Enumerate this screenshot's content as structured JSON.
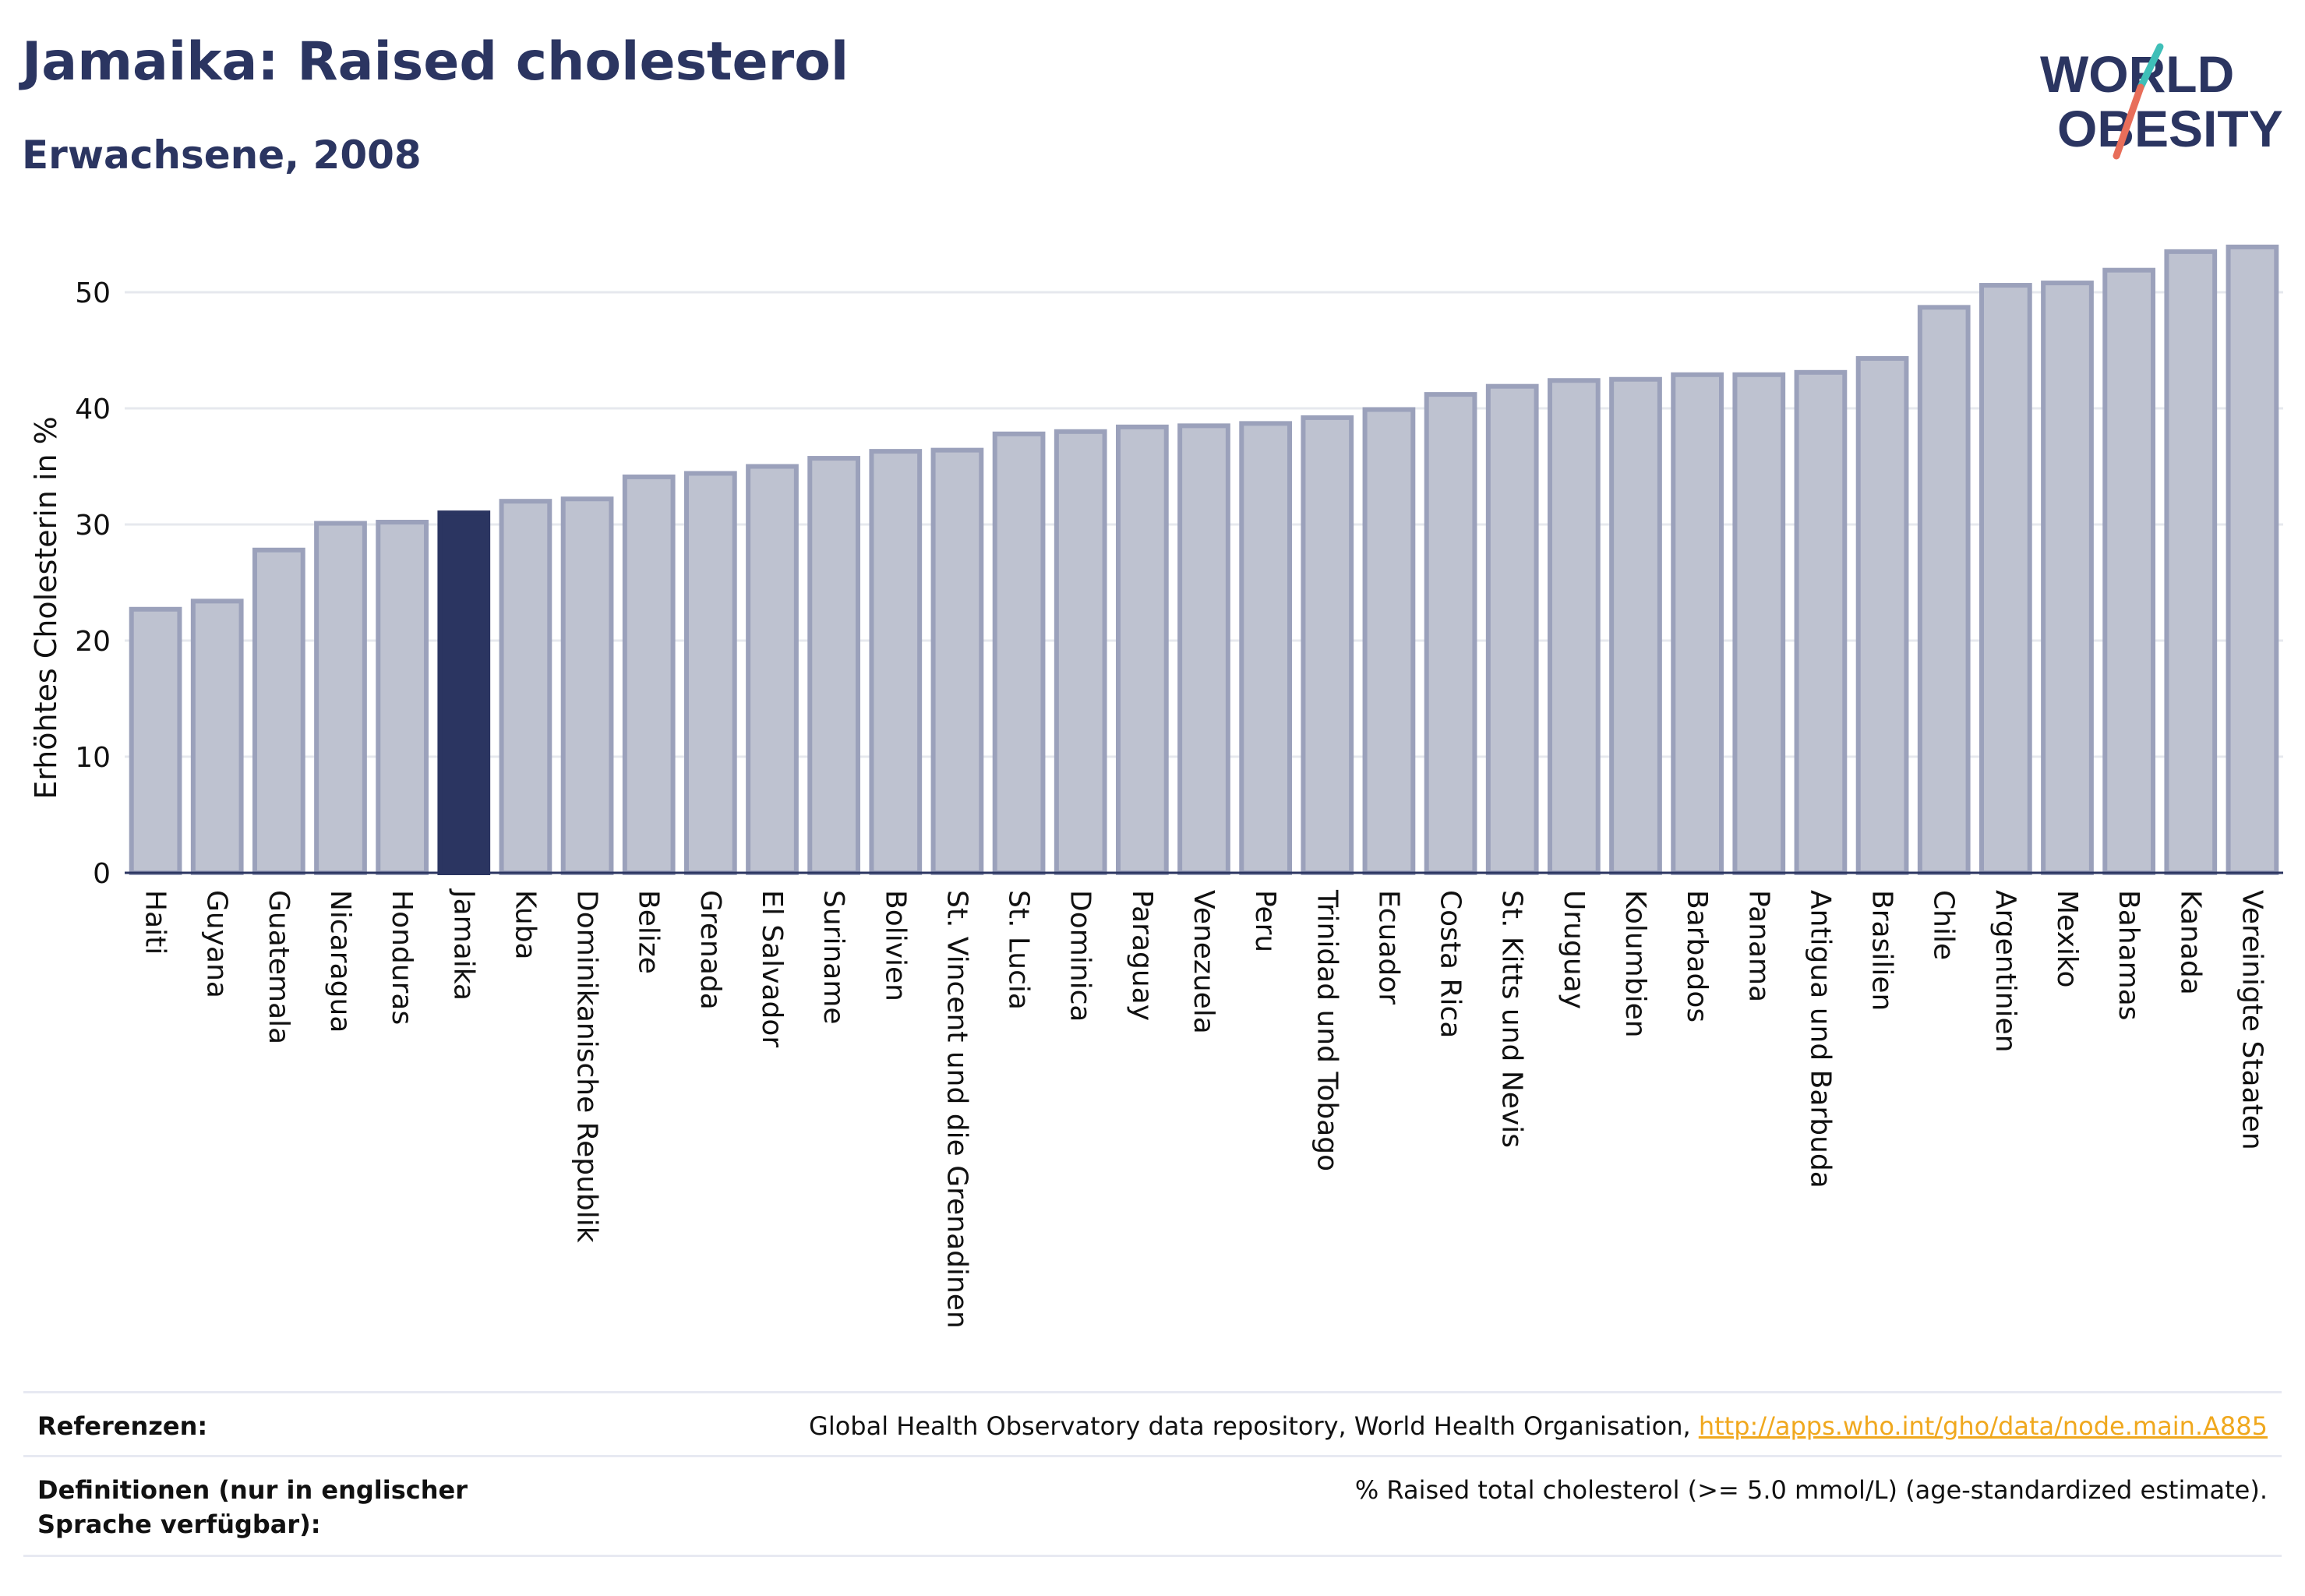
{
  "header": {
    "title": "Jamaika: Raised cholesterol",
    "subtitle": "Erwachsene, 2008"
  },
  "logo": {
    "line1": "WORLD",
    "line2": "OBESITY"
  },
  "chart_data": {
    "type": "bar",
    "ylabel": "Erhöhtes Cholesterin in %",
    "ylim": [
      0,
      55
    ],
    "yticks": [
      0,
      10,
      20,
      30,
      40,
      50
    ],
    "highlight": "Jamaika",
    "grid": true,
    "colors": {
      "bar": "#bec2d0",
      "bar_edge": "#9ba1bb",
      "highlight": "#2b3561"
    },
    "categories": [
      "Haiti",
      "Guyana",
      "Guatemala",
      "Nicaragua",
      "Honduras",
      "Jamaika",
      "Kuba",
      "Dominikanische Republik",
      "Belize",
      "Grenada",
      "El Salvador",
      "Suriname",
      "Bolivien",
      "St. Vincent und die Grenadinen",
      "St. Lucia",
      "Dominica",
      "Paraguay",
      "Venezuela",
      "Peru",
      "Trinidad und Tobago",
      "Ecuador",
      "Costa Rica",
      "St. Kitts und Nevis",
      "Uruguay",
      "Kolumbien",
      "Barbados",
      "Panama",
      "Antigua und Barbuda",
      "Brasilien",
      "Chile",
      "Argentinien",
      "Mexiko",
      "Bahamas",
      "Kanada",
      "Vereinigte Staaten"
    ],
    "values": [
      22.7,
      23.4,
      27.8,
      30.1,
      30.2,
      31.0,
      32.0,
      32.2,
      34.1,
      34.4,
      35.0,
      35.7,
      36.3,
      36.4,
      37.8,
      38.0,
      38.4,
      38.5,
      38.7,
      39.2,
      39.9,
      41.2,
      41.9,
      42.4,
      42.5,
      42.9,
      42.9,
      43.1,
      44.3,
      48.7,
      50.6,
      50.8,
      51.9,
      53.5,
      53.9
    ]
  },
  "footer": {
    "references_label": "Referenzen:",
    "references_text": "Global Health Observatory data repository, World Health Organisation, ",
    "references_link": "http://apps.who.int/gho/data/node.main.A885",
    "definitions_label": "Definitionen (nur in englischer Sprache verfügbar):",
    "definitions_text": "% Raised total cholesterol (>= 5.0 mmol/L) (age-standardized estimate)."
  }
}
